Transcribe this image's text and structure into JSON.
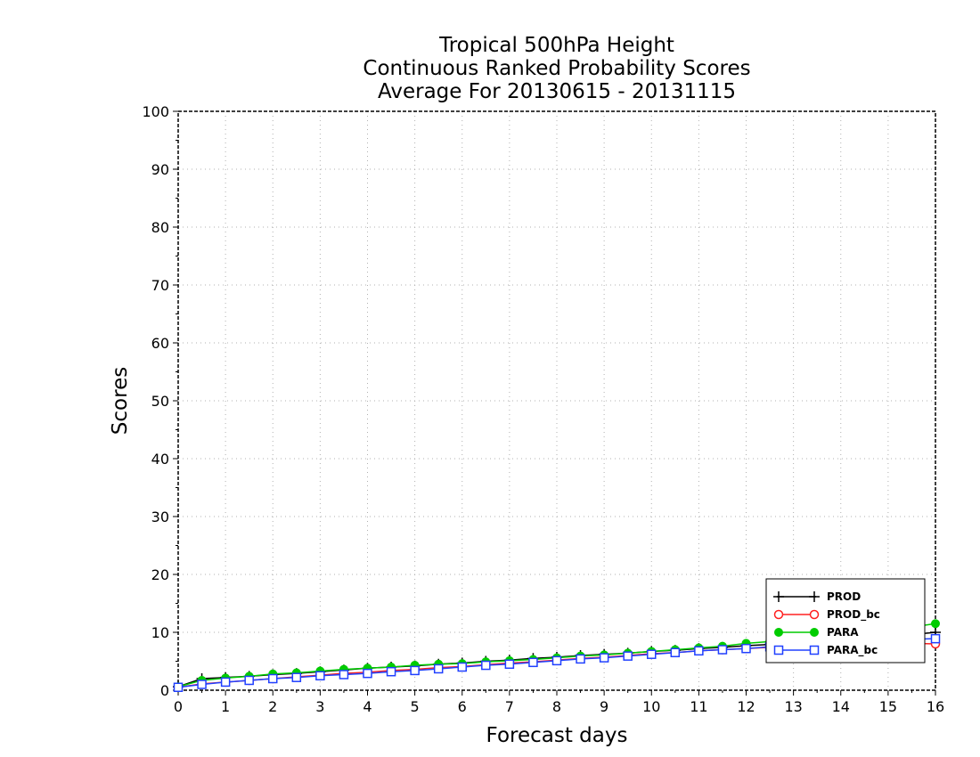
{
  "chart_data": {
    "type": "line",
    "title_lines": [
      "Tropical 500hPa Height",
      "Continuous Ranked Probability Scores",
      "Average For 20130615 - 20131115"
    ],
    "xlabel": "Forecast days",
    "ylabel": "Scores",
    "xlim": [
      0,
      16
    ],
    "ylim": [
      0,
      100
    ],
    "x_ticks": [
      0,
      1,
      2,
      3,
      4,
      5,
      6,
      7,
      8,
      9,
      10,
      11,
      12,
      13,
      14,
      15,
      16
    ],
    "y_ticks": [
      0,
      10,
      20,
      30,
      40,
      50,
      60,
      70,
      80,
      90,
      100
    ],
    "grid": true,
    "legend_position": "bottom-right",
    "x": [
      0,
      0.5,
      1,
      1.5,
      2,
      2.5,
      3,
      3.5,
      4,
      4.5,
      5,
      5.5,
      6,
      6.5,
      7,
      7.5,
      8,
      8.5,
      9,
      9.5,
      10,
      10.5,
      11,
      11.5,
      12,
      12.5,
      13,
      13.5,
      14,
      14.5,
      15,
      15.5,
      16
    ],
    "series": [
      {
        "name": "PROD",
        "color": "#000000",
        "marker": "plus",
        "values": [
          0.6,
          2.0,
          2.2,
          2.4,
          2.7,
          2.9,
          3.2,
          3.5,
          3.8,
          4.0,
          4.2,
          4.5,
          4.7,
          5.0,
          5.2,
          5.5,
          5.7,
          6.0,
          6.2,
          6.4,
          6.7,
          6.9,
          7.2,
          7.4,
          7.7,
          7.9,
          8.2,
          8.4,
          8.7,
          9.0,
          9.3,
          9.6,
          10.0
        ]
      },
      {
        "name": "PROD_bc",
        "color": "#ff2020",
        "marker": "open-circle",
        "values": [
          0.5,
          1.1,
          1.4,
          1.7,
          2.0,
          2.3,
          2.6,
          2.9,
          3.1,
          3.4,
          3.6,
          3.9,
          4.1,
          4.4,
          4.7,
          4.9,
          5.2,
          5.5,
          5.7,
          6.0,
          6.3,
          6.5,
          6.8,
          7.0,
          7.2,
          7.4,
          7.6,
          7.8,
          8.0,
          8.2,
          8.4,
          8.1,
          8.0
        ]
      },
      {
        "name": "PARA",
        "color": "#00cc00",
        "marker": "filled-circle",
        "values": [
          0.6,
          1.7,
          2.1,
          2.4,
          2.8,
          3.0,
          3.3,
          3.6,
          3.8,
          4.0,
          4.3,
          4.5,
          4.6,
          4.9,
          5.1,
          5.3,
          5.6,
          5.9,
          6.1,
          6.4,
          6.7,
          7.0,
          7.3,
          7.6,
          8.1,
          8.4,
          8.8,
          9.2,
          9.7,
          10.1,
          10.4,
          10.9,
          11.5
        ]
      },
      {
        "name": "PARA_bc",
        "color": "#2040ff",
        "marker": "open-square",
        "values": [
          0.5,
          1.0,
          1.4,
          1.7,
          2.0,
          2.2,
          2.5,
          2.7,
          2.9,
          3.2,
          3.4,
          3.7,
          4.0,
          4.3,
          4.5,
          4.8,
          5.1,
          5.4,
          5.6,
          5.9,
          6.2,
          6.5,
          6.8,
          7.0,
          7.2,
          7.5,
          7.8,
          8.1,
          8.4,
          8.6,
          8.7,
          8.8,
          8.9
        ]
      }
    ]
  }
}
